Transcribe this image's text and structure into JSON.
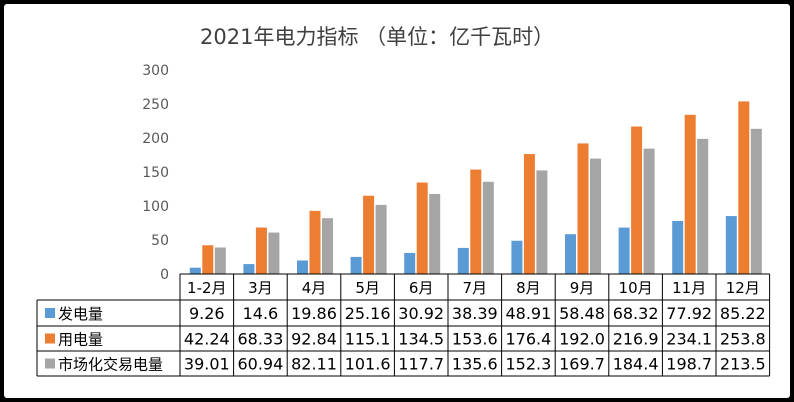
{
  "chart_data": {
    "type": "bar",
    "title": "2021年电力指标 （单位：亿千瓦时）",
    "categories": [
      "1-2月",
      "3月",
      "4月",
      "5月",
      "6月",
      "7月",
      "8月",
      "9月",
      "10月",
      "11月",
      "12月"
    ],
    "series": [
      {
        "name": "发电量",
        "color": "#5b9bd5",
        "values": [
          9.26,
          14.6,
          19.86,
          25.16,
          30.92,
          38.39,
          48.91,
          58.48,
          68.32,
          77.92,
          85.22
        ],
        "labels": [
          "9.26",
          "14.6",
          "19.86",
          "25.16",
          "30.92",
          "38.39",
          "48.91",
          "58.48",
          "68.32",
          "77.92",
          "85.22"
        ]
      },
      {
        "name": "用电量",
        "color": "#ed7d31",
        "values": [
          42.24,
          68.33,
          92.84,
          115.1,
          134.5,
          153.6,
          176.4,
          192.0,
          216.9,
          234.1,
          253.8
        ],
        "labels": [
          "42.24",
          "68.33",
          "92.84",
          "115.1",
          "134.5",
          "153.6",
          "176.4",
          "192.0",
          "216.9",
          "234.1",
          "253.8"
        ]
      },
      {
        "name": "市场化交易电量",
        "color": "#a5a5a5",
        "values": [
          39.01,
          60.94,
          82.11,
          101.6,
          117.7,
          135.6,
          152.3,
          169.7,
          184.4,
          198.7,
          213.5
        ],
        "labels": [
          "39.01",
          "60.94",
          "82.11",
          "101.6",
          "117.7",
          "135.6",
          "152.3",
          "169.7",
          "184.4",
          "198.7",
          "213.5"
        ]
      }
    ],
    "yticks": [
      "0",
      "50",
      "100",
      "150",
      "200",
      "250",
      "300"
    ],
    "ylim": [
      0,
      300
    ],
    "grid": false,
    "legend": "data-table"
  }
}
